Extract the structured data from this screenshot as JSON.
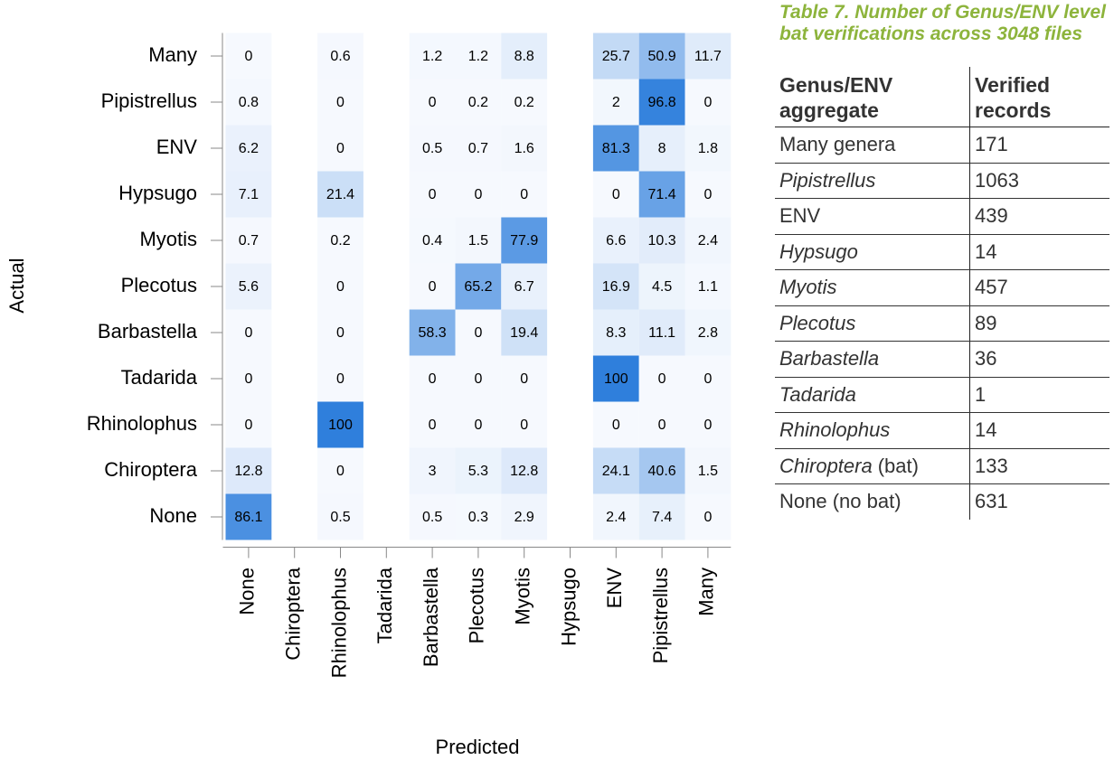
{
  "chart_data": {
    "type": "heatmap",
    "x_label": "Predicted",
    "y_label": "Actual",
    "x_categories": [
      "None",
      "Chiroptera",
      "Rhinolophus",
      "Tadarida",
      "Barbastella",
      "Plecotus",
      "Myotis",
      "Hypsugo",
      "ENV",
      "Pipistrellus",
      "Many"
    ],
    "y_categories": [
      "Many",
      "Pipistrellus",
      "ENV",
      "Hypsugo",
      "Myotis",
      "Plecotus",
      "Barbastella",
      "Tadarida",
      "Rhinolophus",
      "Chiroptera",
      "None"
    ],
    "values": [
      [
        0,
        null,
        0.6,
        null,
        1.2,
        1.2,
        8.8,
        null,
        25.7,
        50.9,
        11.7
      ],
      [
        0.8,
        null,
        0,
        null,
        0,
        0.2,
        0.2,
        null,
        2,
        96.8,
        0
      ],
      [
        6.2,
        null,
        0,
        null,
        0.5,
        0.7,
        1.6,
        null,
        81.3,
        8,
        1.8
      ],
      [
        7.1,
        null,
        21.4,
        null,
        0,
        0,
        0,
        null,
        0,
        71.4,
        0
      ],
      [
        0.7,
        null,
        0.2,
        null,
        0.4,
        1.5,
        77.9,
        null,
        6.6,
        10.3,
        2.4
      ],
      [
        5.6,
        null,
        0,
        null,
        0,
        65.2,
        6.7,
        null,
        16.9,
        4.5,
        1.1
      ],
      [
        0,
        null,
        0,
        null,
        58.3,
        0,
        19.4,
        null,
        8.3,
        11.1,
        2.8
      ],
      [
        0,
        null,
        0,
        null,
        0,
        0,
        0,
        null,
        100,
        0,
        0
      ],
      [
        0,
        null,
        100,
        null,
        0,
        0,
        0,
        null,
        0,
        0,
        0
      ],
      [
        12.8,
        null,
        0,
        null,
        3,
        5.3,
        12.8,
        null,
        24.1,
        40.6,
        1.5
      ],
      [
        86.1,
        null,
        0.5,
        null,
        0.5,
        0.3,
        2.9,
        null,
        2.4,
        7.4,
        0
      ]
    ],
    "clim": [
      0,
      100
    ],
    "colors": [
      "#f6f9fe",
      "#2f7fdc"
    ]
  },
  "table": {
    "caption": "Table 7. Number of Genus/ENV level bat verifications across 3048 files",
    "header": [
      "Genus/ENV aggregate",
      "Verified records"
    ],
    "rows": [
      {
        "name": "Many genera",
        "italic": false,
        "records": 171
      },
      {
        "name": "Pipistrellus",
        "italic": true,
        "records": 1063
      },
      {
        "name": "ENV",
        "italic": false,
        "records": 439
      },
      {
        "name": "Hypsugo",
        "italic": true,
        "records": 14
      },
      {
        "name": "Myotis",
        "italic": true,
        "records": 457
      },
      {
        "name": "Plecotus",
        "italic": true,
        "records": 89
      },
      {
        "name": "Barbastella",
        "italic": true,
        "records": 36
      },
      {
        "name": "Tadarida",
        "italic": true,
        "records": 1
      },
      {
        "name": "Rhinolophus",
        "italic": true,
        "records": 14
      },
      {
        "name": "Chiroptera",
        "italic": true,
        "suffix": "(bat)",
        "records": 133
      },
      {
        "name": "None (no bat)",
        "italic": false,
        "records": 631
      }
    ]
  }
}
